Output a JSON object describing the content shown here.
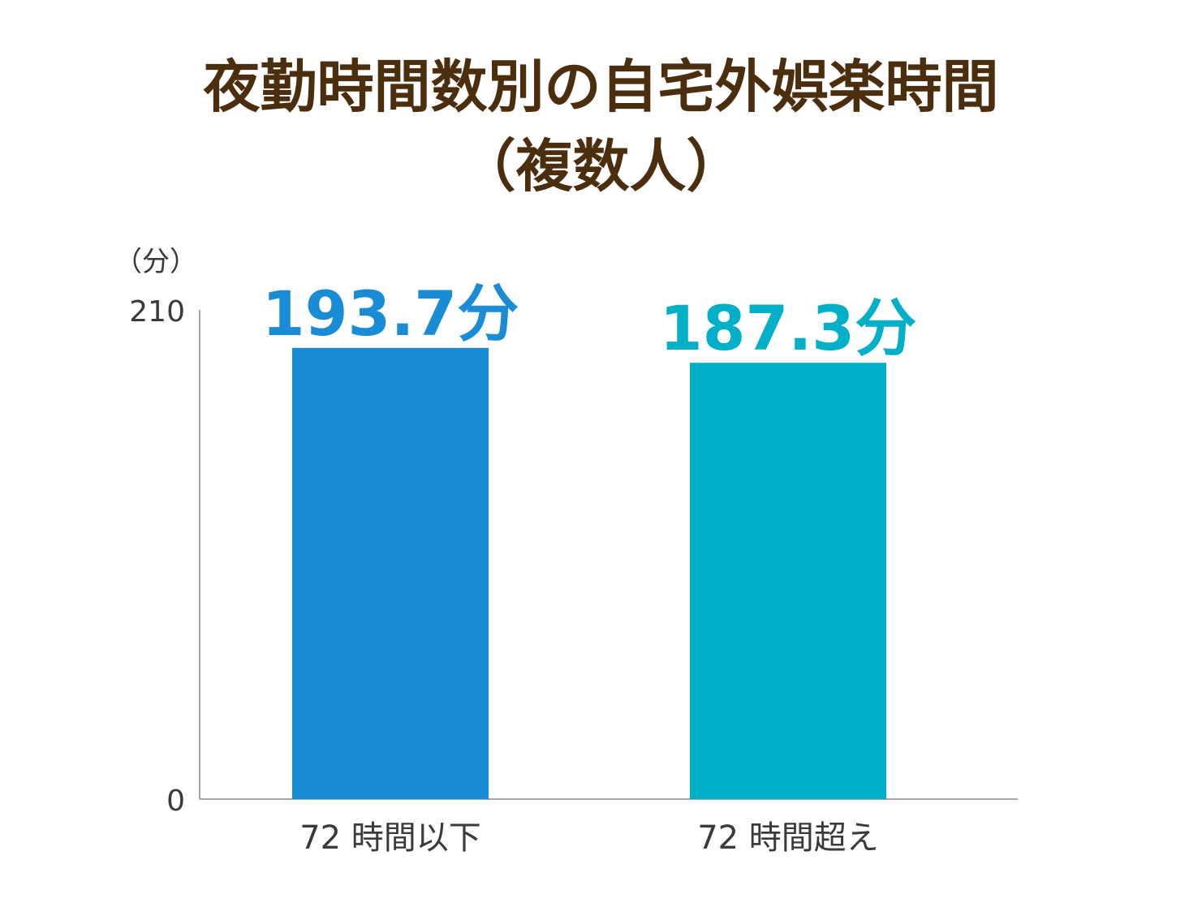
{
  "chart_data": {
    "type": "bar",
    "title_lines": [
      "夜勤時間数別の自宅外娯楽時間",
      "（複数人）"
    ],
    "unit_label": "（分）",
    "categories": [
      "72 時間以下",
      "72 時間超え"
    ],
    "values": [
      193.7,
      187.3
    ],
    "data_labels": [
      "193.7分",
      "187.3分"
    ],
    "bar_colors": [
      "#1a8bd5",
      "#00afc8"
    ],
    "ylim": [
      0,
      210
    ],
    "y_ticks": [
      0,
      210
    ],
    "y_tick_labels": [
      "0",
      "210"
    ],
    "grid": false,
    "legend": "none"
  },
  "colors": {
    "title": "#4a2e0e",
    "axis": "#8a8a8a",
    "axis_text": "#3a3a3a"
  }
}
